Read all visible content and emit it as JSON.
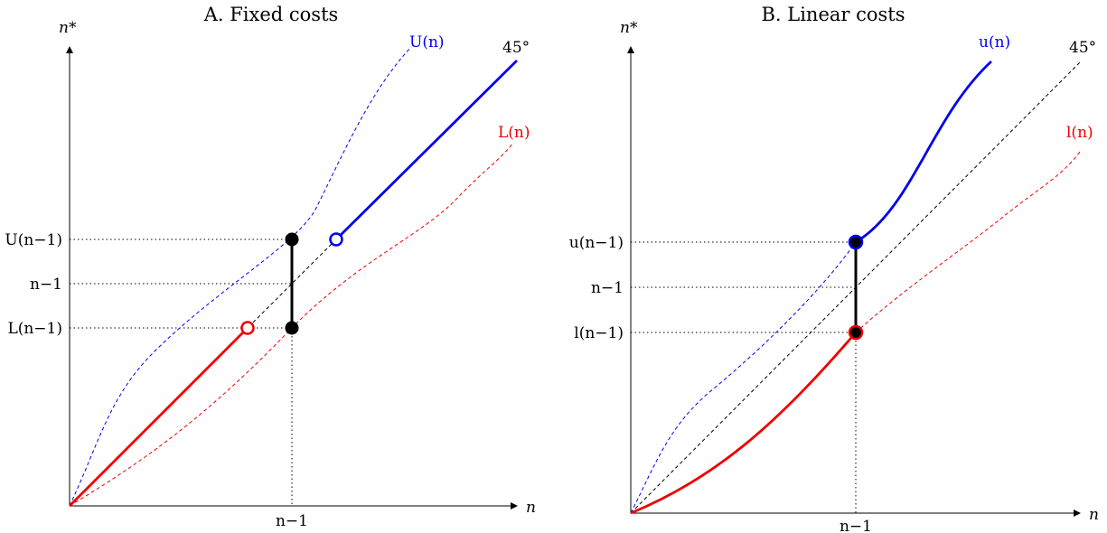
{
  "panels": [
    {
      "id": "fixed",
      "title": "A. Fixed costs",
      "x_axis_label": "n",
      "y_axis_label": "n*",
      "x_tick": "n−1",
      "y_ticks": {
        "upper": "U(n−1)",
        "mid": "n−1",
        "lower": "L(n−1)"
      },
      "curve_labels": {
        "upper": "U(n)",
        "diag": "45°",
        "lower": "L(n)"
      },
      "colors": {
        "upper": "#0000ee",
        "lower": "#ee0000",
        "axis": "#000000"
      }
    },
    {
      "id": "linear",
      "title": "B. Linear costs",
      "x_axis_label": "n",
      "y_axis_label": "n*",
      "x_tick": "n−1",
      "y_ticks": {
        "upper": "u(n−1)",
        "mid": "n−1",
        "lower": "l(n−1)"
      },
      "curve_labels": {
        "upper": "u(n)",
        "diag": "45°",
        "lower": "l(n)"
      },
      "colors": {
        "upper": "#0000ee",
        "lower": "#ee0000",
        "axis": "#000000"
      }
    }
  ]
}
